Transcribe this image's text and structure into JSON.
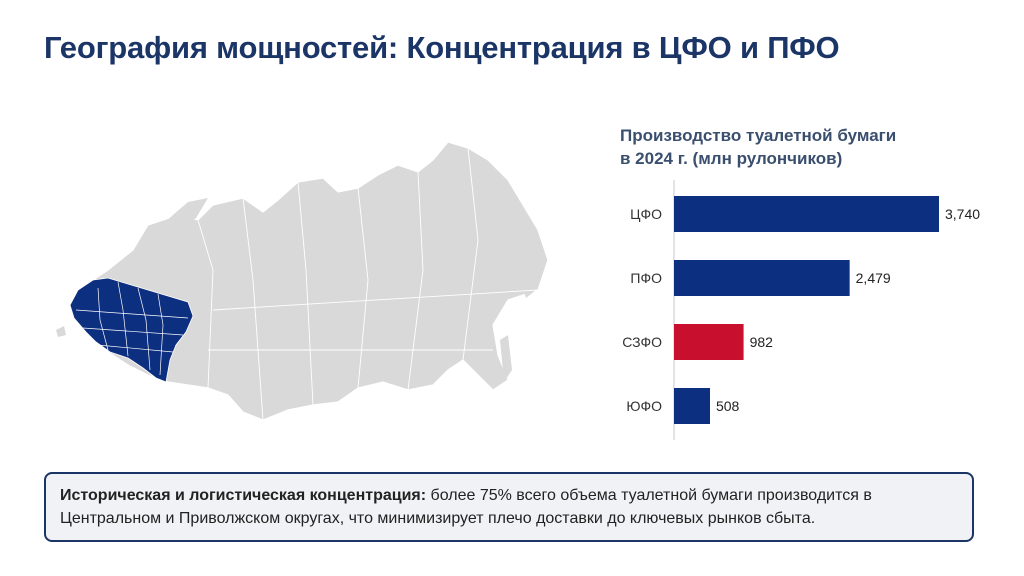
{
  "title": "География мощностей: Концентрация в ЦФО и ПФО",
  "chart_title": [
    "Производство туалетной бумаги",
    "в 2024 г. (млн рулончиков)"
  ],
  "chart_data": {
    "type": "bar",
    "orientation": "horizontal",
    "title": "Производство туалетной бумаги в 2024 г. (млн рулончиков)",
    "categories": [
      "ЦФО",
      "ПФО",
      "СЗФО",
      "ЮФО"
    ],
    "values": [
      3740,
      2479,
      982,
      508
    ],
    "value_labels": [
      "3,740",
      "2,479",
      "982",
      "508"
    ],
    "colors": [
      "#0d2f80",
      "#0d2f80",
      "#c8102e",
      "#0d2f80"
    ],
    "xlim": [
      0,
      3740
    ],
    "grid": false
  },
  "map": {
    "highlight_color": "#0d2f80",
    "base_color": "#d9d9d9"
  },
  "note": {
    "bold": "Историческая и логистическая концентрация:",
    "text": " более 75% всего объема туалетной бумаги производится в Центральном и Приволжском округах, что минимизирует плечо доставки до ключевых рынков сбыта."
  }
}
